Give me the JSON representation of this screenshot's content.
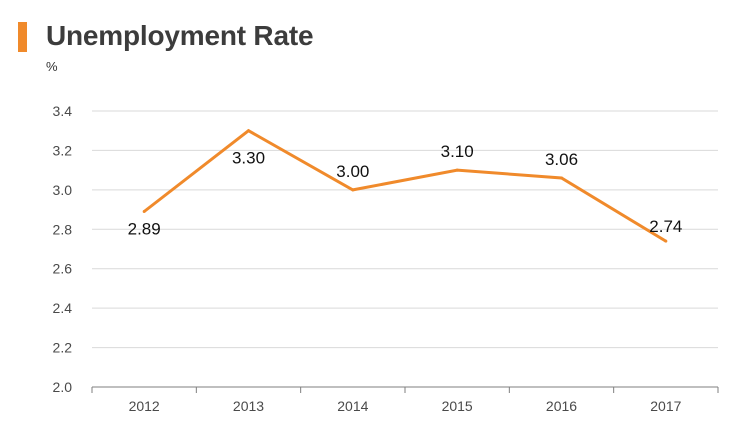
{
  "chart_data": {
    "type": "line",
    "title": "Unemployment Rate",
    "ylabel": "%",
    "xlabel": "",
    "categories": [
      "2012",
      "2013",
      "2014",
      "2015",
      "2016",
      "2017"
    ],
    "series": [
      {
        "values": [
          2.89,
          3.3,
          3.0,
          3.1,
          3.06,
          2.74
        ]
      }
    ],
    "data_labels": [
      "2.89",
      "3.30",
      "3.00",
      "3.10",
      "3.06",
      "2.74"
    ],
    "ylim": [
      2.0,
      3.4
    ],
    "yticks": [
      "2.0",
      "2.2",
      "2.4",
      "2.6",
      "2.8",
      "3.0",
      "3.2",
      "3.4"
    ],
    "grid": true,
    "legend": "none",
    "colors": {
      "line": "#f08a2b",
      "accent": "#f08a2b",
      "grid": "#d9d9d9",
      "axis": "#7f7f7f"
    }
  }
}
